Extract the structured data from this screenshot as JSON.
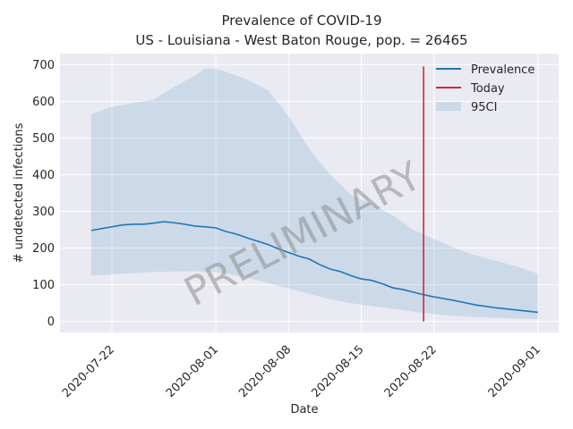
{
  "chart_data": {
    "type": "line",
    "title": "Prevalence of COVID-19",
    "subtitle": "US - Louisiana - West Baton Rouge, pop. = 26465",
    "xlabel": "Date",
    "ylabel": "# undetected infections",
    "ylim": [
      -30,
      730
    ],
    "yticks": [
      0,
      100,
      200,
      300,
      400,
      500,
      600,
      700
    ],
    "xlim": [
      "2020-07-17",
      "2020-09-03"
    ],
    "xticks": [
      "2020-07-22",
      "2020-08-01",
      "2020-08-08",
      "2020-08-15",
      "2020-08-22",
      "2020-09-01"
    ],
    "grid": true,
    "legend_position": "top-right",
    "watermark": "PRELIMINARY",
    "today": {
      "name": "Today",
      "date": "2020-08-21",
      "y_range": [
        0,
        695
      ],
      "color": "#d62728"
    },
    "series": [
      {
        "name": "Prevalence",
        "color": "#1f77b4",
        "x": [
          "2020-07-20",
          "2020-07-21",
          "2020-07-22",
          "2020-07-23",
          "2020-07-24",
          "2020-07-25",
          "2020-07-26",
          "2020-07-27",
          "2020-07-28",
          "2020-07-29",
          "2020-07-30",
          "2020-07-31",
          "2020-08-01",
          "2020-08-02",
          "2020-08-03",
          "2020-08-04",
          "2020-08-05",
          "2020-08-06",
          "2020-08-07",
          "2020-08-08",
          "2020-08-09",
          "2020-08-10",
          "2020-08-11",
          "2020-08-12",
          "2020-08-13",
          "2020-08-14",
          "2020-08-15",
          "2020-08-16",
          "2020-08-17",
          "2020-08-18",
          "2020-08-19",
          "2020-08-20",
          "2020-08-21",
          "2020-08-22",
          "2020-08-23",
          "2020-08-24",
          "2020-08-25",
          "2020-08-26",
          "2020-08-27",
          "2020-08-28",
          "2020-08-29",
          "2020-08-30",
          "2020-08-31",
          "2020-09-01"
        ],
        "y": [
          248,
          253,
          258,
          263,
          265,
          265,
          268,
          272,
          269,
          265,
          260,
          258,
          255,
          245,
          238,
          228,
          219,
          210,
          198,
          188,
          178,
          170,
          155,
          143,
          136,
          125,
          116,
          112,
          103,
          92,
          87,
          80,
          73,
          67,
          62,
          57,
          51,
          45,
          41,
          37,
          34,
          31,
          28,
          25
        ]
      },
      {
        "name": "95CI",
        "color": "#1f77b4",
        "opacity": 0.15,
        "x": [
          "2020-07-20",
          "2020-07-22",
          "2020-07-24",
          "2020-07-26",
          "2020-07-28",
          "2020-07-30",
          "2020-07-31",
          "2020-08-01",
          "2020-08-02",
          "2020-08-04",
          "2020-08-06",
          "2020-08-08",
          "2020-08-10",
          "2020-08-12",
          "2020-08-14",
          "2020-08-16",
          "2020-08-18",
          "2020-08-20",
          "2020-08-22",
          "2020-08-24",
          "2020-08-26",
          "2020-08-28",
          "2020-08-30",
          "2020-09-01"
        ],
        "upper": [
          565,
          585,
          595,
          605,
          640,
          670,
          690,
          688,
          680,
          660,
          630,
          560,
          470,
          400,
          345,
          320,
          290,
          250,
          225,
          200,
          180,
          165,
          150,
          130
        ],
        "lower": [
          125,
          128,
          132,
          135,
          136,
          137,
          136,
          134,
          130,
          120,
          105,
          90,
          75,
          60,
          50,
          42,
          35,
          27,
          20,
          15,
          12,
          10,
          8,
          6
        ]
      }
    ]
  }
}
